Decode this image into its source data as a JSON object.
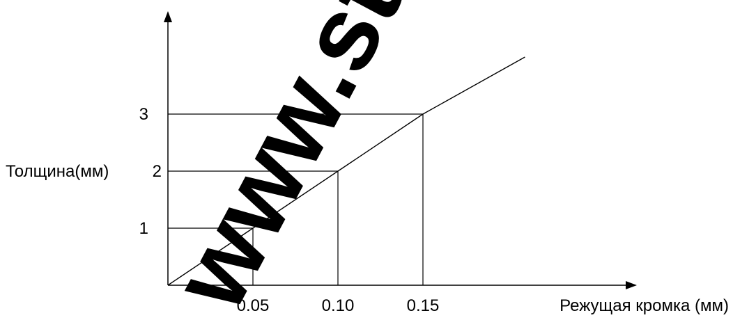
{
  "colors": {
    "axis": "#000000",
    "line": "#000000",
    "watermark": "#e8250c"
  },
  "watermark": "www.st",
  "chart_data": {
    "type": "line",
    "title": "",
    "xlabel": "Режущая кромка (мм)",
    "ylabel": "Толщина(мм)",
    "x_tick_labels": [
      "0.05",
      "0.10",
      "0.15"
    ],
    "y_tick_labels": [
      "1",
      "2",
      "3"
    ],
    "x_ticks": [
      0.05,
      0.1,
      0.15
    ],
    "y_ticks": [
      1,
      2,
      3
    ],
    "xlim": [
      0,
      0.23
    ],
    "ylim": [
      0,
      4.9
    ],
    "grid": false,
    "legend": "none",
    "series": [
      {
        "x": [
          0,
          0.05,
          0.1,
          0.15,
          0.21
        ],
        "y": [
          0,
          1,
          2,
          3,
          4.0
        ]
      }
    ],
    "guides": [
      {
        "x": 0.05,
        "y": 1
      },
      {
        "x": 0.1,
        "y": 2
      },
      {
        "x": 0.15,
        "y": 3
      }
    ]
  }
}
